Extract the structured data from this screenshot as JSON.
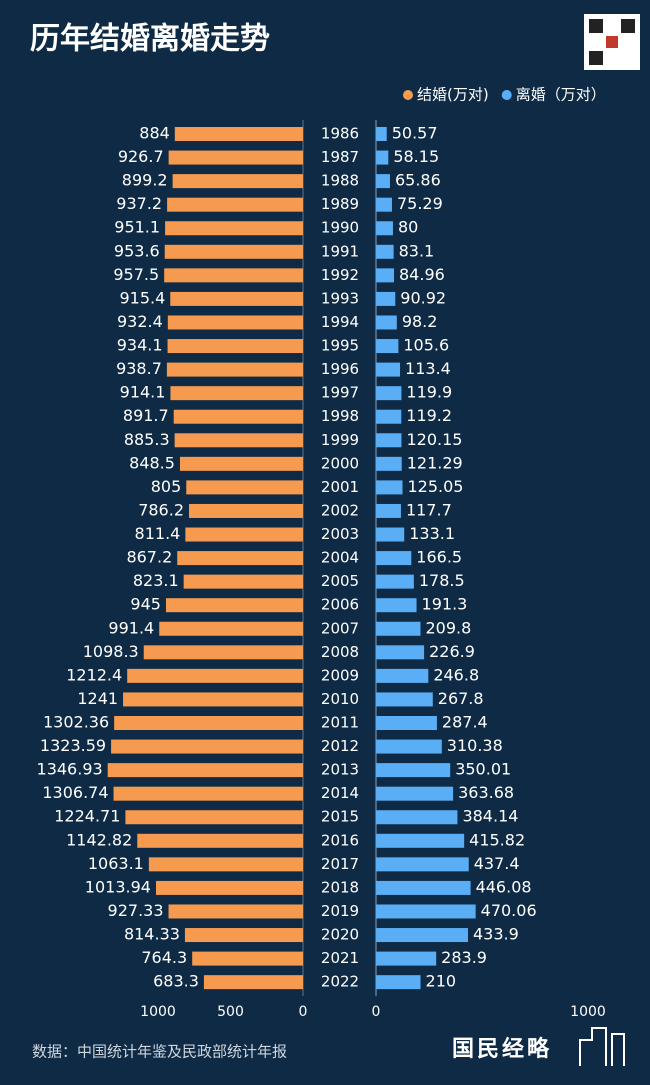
{
  "chart_data": {
    "type": "butterfly-bar",
    "title": "历年结婚离婚走势",
    "categories": [
      "1986",
      "1987",
      "1988",
      "1989",
      "1990",
      "1991",
      "1992",
      "1993",
      "1994",
      "1995",
      "1996",
      "1997",
      "1998",
      "1999",
      "2000",
      "2001",
      "2002",
      "2003",
      "2004",
      "2005",
      "2006",
      "2007",
      "2008",
      "2009",
      "2010",
      "2011",
      "2012",
      "2013",
      "2014",
      "2015",
      "2016",
      "2017",
      "2018",
      "2019",
      "2020",
      "2021",
      "2022"
    ],
    "series": [
      {
        "name": "结婚(万对)",
        "color": "#f59a4f",
        "axis": "x",
        "values": [
          884,
          926.7,
          899.2,
          937.2,
          951.1,
          953.6,
          957.5,
          915.4,
          932.4,
          934.1,
          938.7,
          914.1,
          891.7,
          885.3,
          848.5,
          805,
          786.2,
          811.4,
          867.2,
          823.1,
          945,
          991.4,
          1098.3,
          1212.4,
          1241,
          1302.36,
          1323.59,
          1346.93,
          1306.74,
          1224.71,
          1142.82,
          1063.1,
          1013.94,
          927.33,
          814.33,
          764.3,
          683.3
        ]
      },
      {
        "name": "离婚（万对）",
        "color": "#5aaef5",
        "axis": "x2",
        "values": [
          50.57,
          58.15,
          65.86,
          75.29,
          80,
          83.1,
          84.96,
          90.92,
          98.2,
          105.6,
          113.4,
          119.9,
          119.2,
          120.15,
          121.29,
          125.05,
          117.7,
          133.1,
          166.5,
          178.5,
          191.3,
          209.8,
          226.9,
          246.8,
          267.8,
          287.4,
          310.38,
          350.01,
          363.68,
          384.14,
          415.82,
          437.4,
          446.08,
          470.06,
          433.9,
          283.9,
          210
        ]
      }
    ],
    "xlim": [
      0,
      1400
    ],
    "xticks": [
      1000,
      500,
      0
    ],
    "x2lim": [
      0,
      1000
    ],
    "x2ticks": [
      0,
      1000
    ],
    "legend": "top-right"
  },
  "source": "数据：中国统计年鉴及民政部统计年报",
  "logo": "国民经略"
}
